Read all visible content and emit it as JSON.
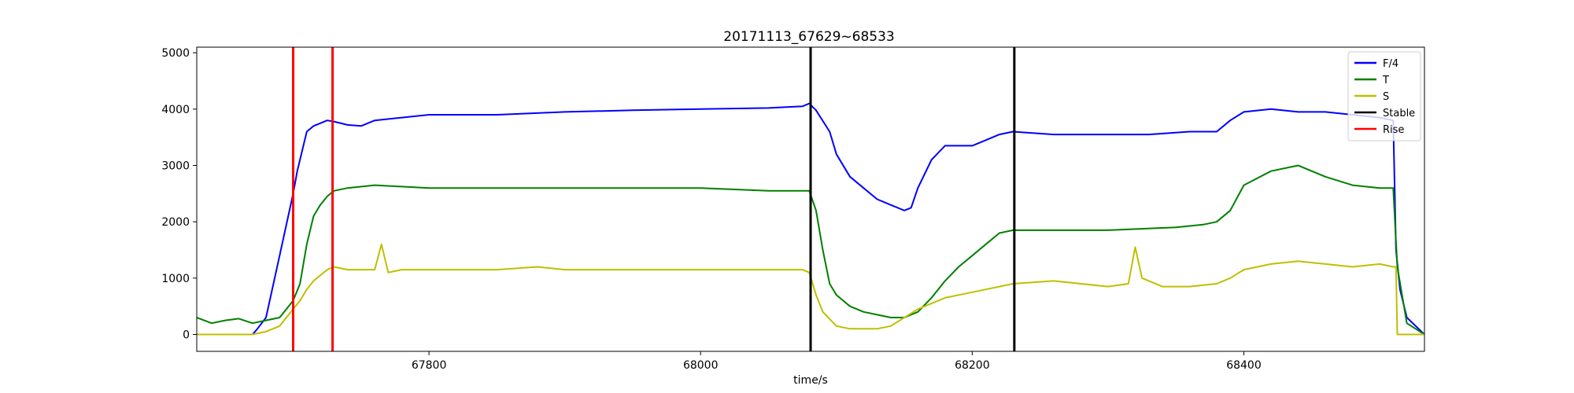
{
  "chart_data": {
    "type": "line",
    "title": "20171113_67629~68533",
    "xlabel": "time/s",
    "ylabel": "",
    "xlim": [
      67629,
      68533
    ],
    "ylim": [
      -300,
      5100
    ],
    "xticks": [
      67800,
      68000,
      68200,
      68400
    ],
    "yticks": [
      0,
      1000,
      2000,
      3000,
      4000,
      5000
    ],
    "grid": false,
    "legend_position": "top-right",
    "series": [
      {
        "name": "F/4",
        "color": "#0000ff",
        "x": [
          67629,
          67670,
          67673,
          67680,
          67690,
          67700,
          67703,
          67710,
          67715,
          67720,
          67725,
          67730,
          67740,
          67750,
          67760,
          67780,
          67800,
          67850,
          67900,
          67950,
          68000,
          68050,
          68075,
          68080,
          68085,
          68095,
          68100,
          68110,
          68120,
          68130,
          68140,
          68150,
          68155,
          68160,
          68170,
          68180,
          68190,
          68200,
          68210,
          68220,
          68230,
          68260,
          68300,
          68330,
          68360,
          68380,
          68390,
          68400,
          68420,
          68440,
          68460,
          68480,
          68500,
          68510,
          68512,
          68515,
          68520,
          68533
        ],
        "y": [
          0,
          0,
          80,
          300,
          1400,
          2500,
          2900,
          3600,
          3700,
          3750,
          3800,
          3780,
          3720,
          3700,
          3800,
          3850,
          3900,
          3900,
          3950,
          3980,
          4000,
          4020,
          4050,
          4100,
          3980,
          3600,
          3200,
          2800,
          2600,
          2400,
          2300,
          2200,
          2250,
          2600,
          3100,
          3350,
          3350,
          3350,
          3450,
          3550,
          3600,
          3550,
          3550,
          3550,
          3600,
          3600,
          3800,
          3950,
          4000,
          3950,
          3950,
          3900,
          3850,
          3800,
          1500,
          800,
          300,
          0
        ]
      },
      {
        "name": "T",
        "color": "#008000",
        "x": [
          67629,
          67640,
          67650,
          67660,
          67670,
          67680,
          67690,
          67700,
          67705,
          67710,
          67715,
          67720,
          67725,
          67730,
          67740,
          67760,
          67800,
          67850,
          67900,
          67950,
          68000,
          68050,
          68075,
          68080,
          68085,
          68090,
          68095,
          68100,
          68110,
          68120,
          68130,
          68140,
          68150,
          68160,
          68170,
          68180,
          68190,
          68200,
          68210,
          68220,
          68230,
          68240,
          68300,
          68350,
          68370,
          68380,
          68390,
          68400,
          68420,
          68440,
          68460,
          68480,
          68500,
          68510,
          68513,
          68520,
          68533
        ],
        "y": [
          300,
          200,
          250,
          280,
          200,
          250,
          300,
          600,
          900,
          1600,
          2100,
          2300,
          2450,
          2550,
          2600,
          2650,
          2600,
          2600,
          2600,
          2600,
          2600,
          2550,
          2550,
          2550,
          2200,
          1500,
          900,
          700,
          500,
          400,
          350,
          300,
          300,
          400,
          650,
          950,
          1200,
          1400,
          1600,
          1800,
          1850,
          1850,
          1850,
          1900,
          1950,
          2000,
          2200,
          2650,
          2900,
          3000,
          2800,
          2650,
          2600,
          2600,
          1200,
          200,
          0
        ]
      },
      {
        "name": "S",
        "color": "#bfbf00",
        "x": [
          67629,
          67670,
          67680,
          67690,
          67700,
          67705,
          67710,
          67715,
          67720,
          67725,
          67730,
          67740,
          67760,
          67765,
          67770,
          67780,
          67800,
          67850,
          67880,
          67900,
          67950,
          68000,
          68050,
          68075,
          68080,
          68085,
          68090,
          68100,
          68110,
          68120,
          68130,
          68140,
          68150,
          68160,
          68170,
          68180,
          68190,
          68200,
          68210,
          68220,
          68230,
          68260,
          68300,
          68315,
          68320,
          68325,
          68340,
          68360,
          68380,
          68390,
          68400,
          68420,
          68440,
          68460,
          68480,
          68500,
          68510,
          68512,
          68513,
          68533
        ],
        "y": [
          0,
          0,
          50,
          150,
          450,
          600,
          800,
          950,
          1050,
          1150,
          1200,
          1150,
          1150,
          1600,
          1100,
          1150,
          1150,
          1150,
          1200,
          1150,
          1150,
          1150,
          1150,
          1150,
          1100,
          700,
          400,
          150,
          100,
          100,
          100,
          150,
          300,
          450,
          550,
          650,
          700,
          750,
          800,
          850,
          900,
          950,
          850,
          900,
          1550,
          1000,
          850,
          850,
          900,
          1000,
          1150,
          1250,
          1300,
          1250,
          1200,
          1250,
          1200,
          1200,
          0,
          0
        ]
      },
      {
        "name": "Stable",
        "color": "#000000",
        "vlines": [
          68081,
          68231
        ]
      },
      {
        "name": "Rise",
        "color": "#ff0000",
        "vlines": [
          67700,
          67729
        ]
      }
    ]
  }
}
